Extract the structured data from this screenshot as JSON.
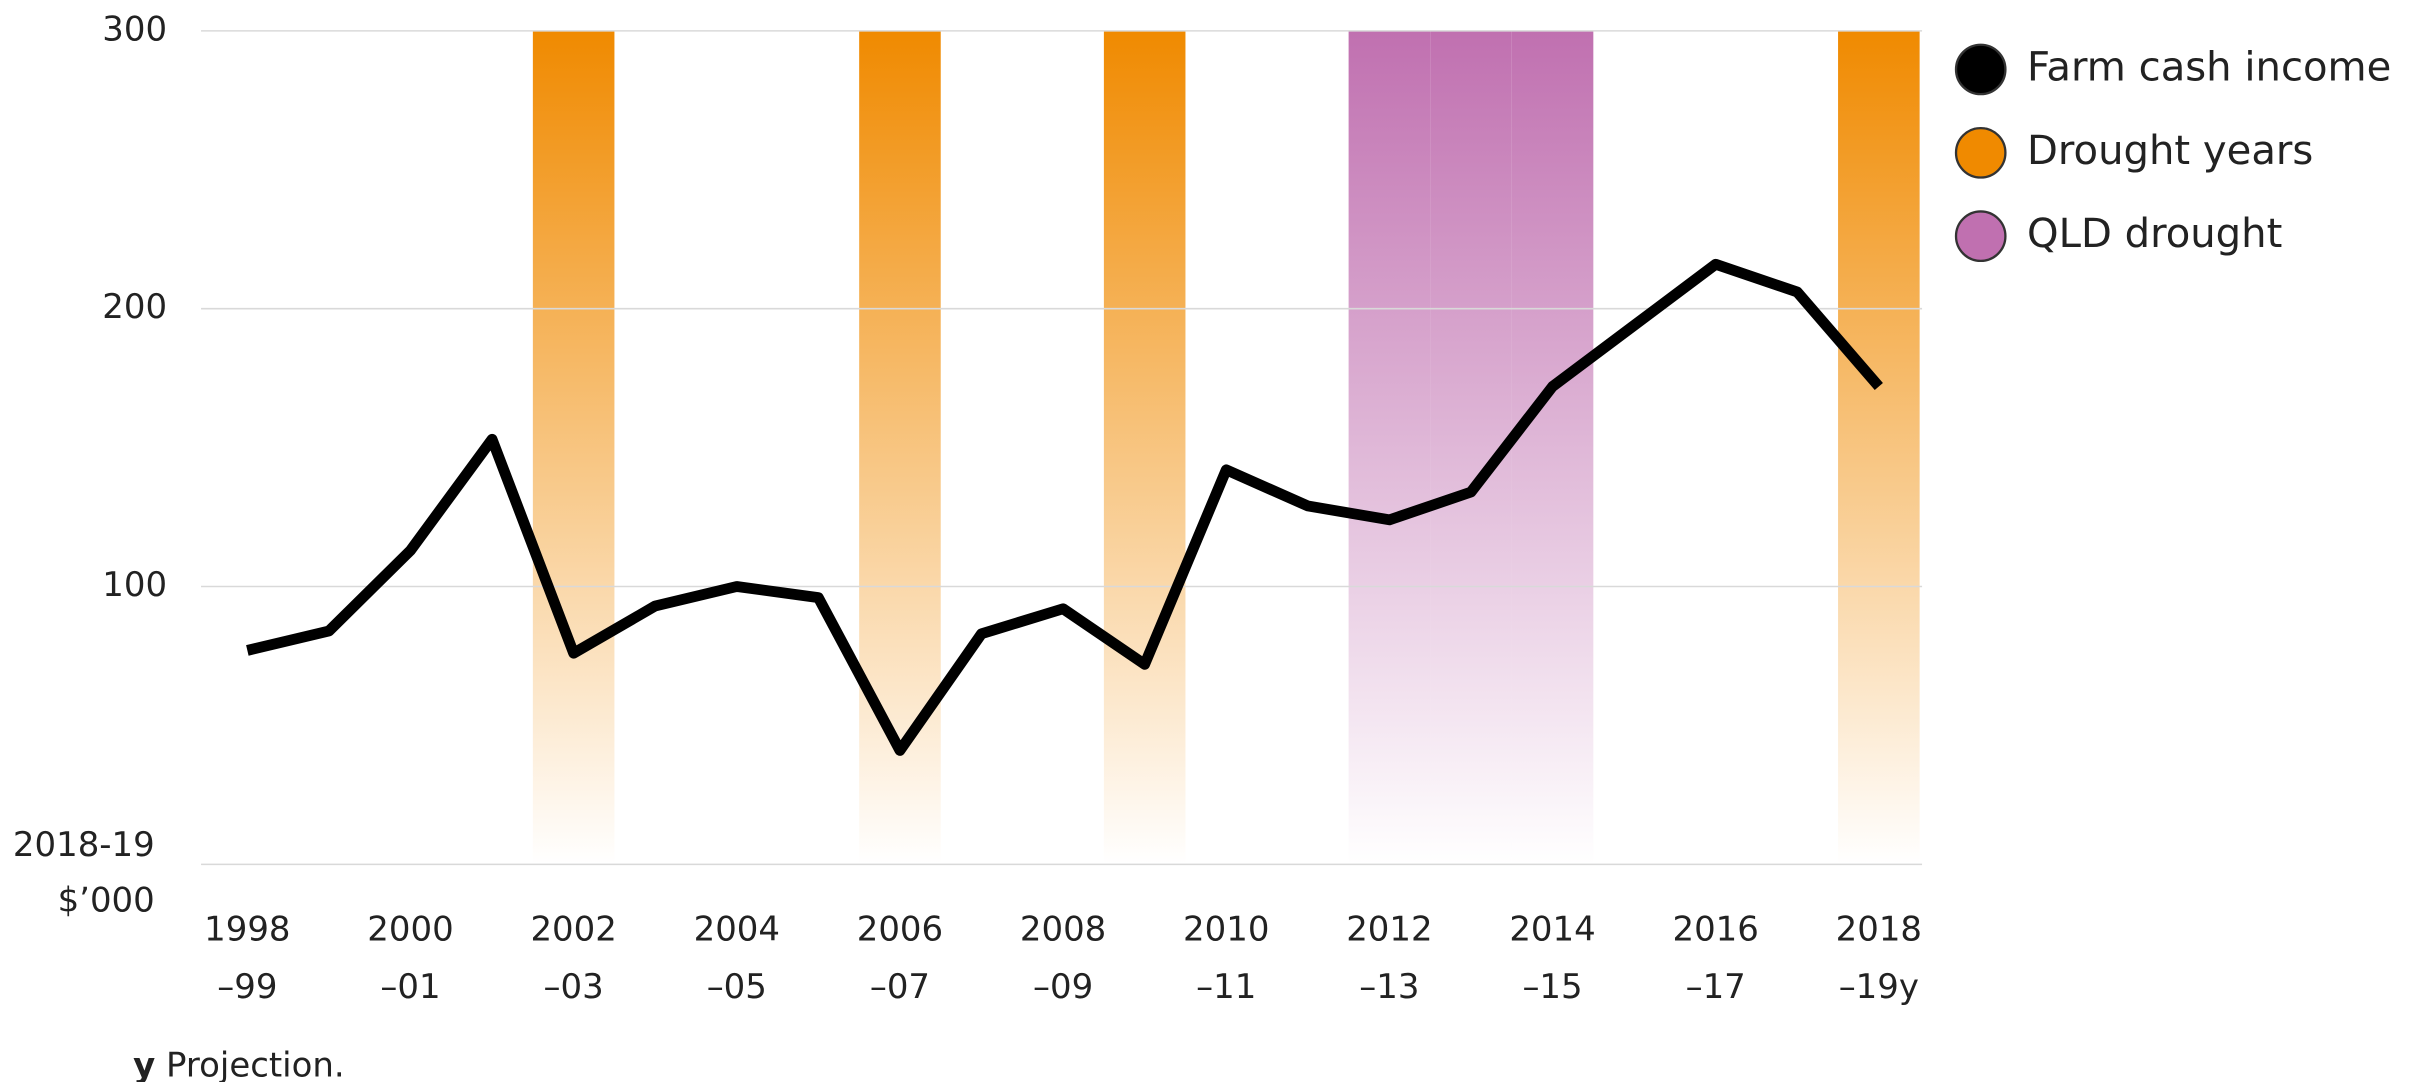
{
  "chart_data": {
    "type": "line",
    "y_label": "2018-19\n$’000",
    "categories": [
      "1998\n–99",
      null,
      "2000\n–01",
      null,
      "2002\n–03",
      null,
      "2004\n–05",
      null,
      "2006\n–07",
      null,
      "2008\n–09",
      null,
      "2010\n–11",
      null,
      "2012\n–13",
      null,
      "2014\n–15",
      null,
      "2016\n–17",
      null,
      "2018\n–19y"
    ],
    "series": [
      {
        "name": "Farm cash income",
        "color": "#000000",
        "values": [
          77,
          84,
          113,
          153,
          76,
          93,
          100,
          96,
          41,
          83,
          92,
          72,
          142,
          129,
          124,
          134,
          172,
          194,
          216,
          206,
          172
        ]
      }
    ],
    "bands": [
      {
        "name": "Drought years",
        "color": "#f08a00",
        "at": [
          4,
          8,
          11,
          20
        ]
      },
      {
        "name": "QLD drought",
        "color": "#c070b0",
        "at": [
          14,
          15,
          16
        ]
      }
    ],
    "ylim": [
      0,
      300
    ],
    "yticks": [
      100,
      200,
      300
    ],
    "grid": true,
    "legend": "top-right",
    "note_marker": "y",
    "note": "Projection."
  }
}
